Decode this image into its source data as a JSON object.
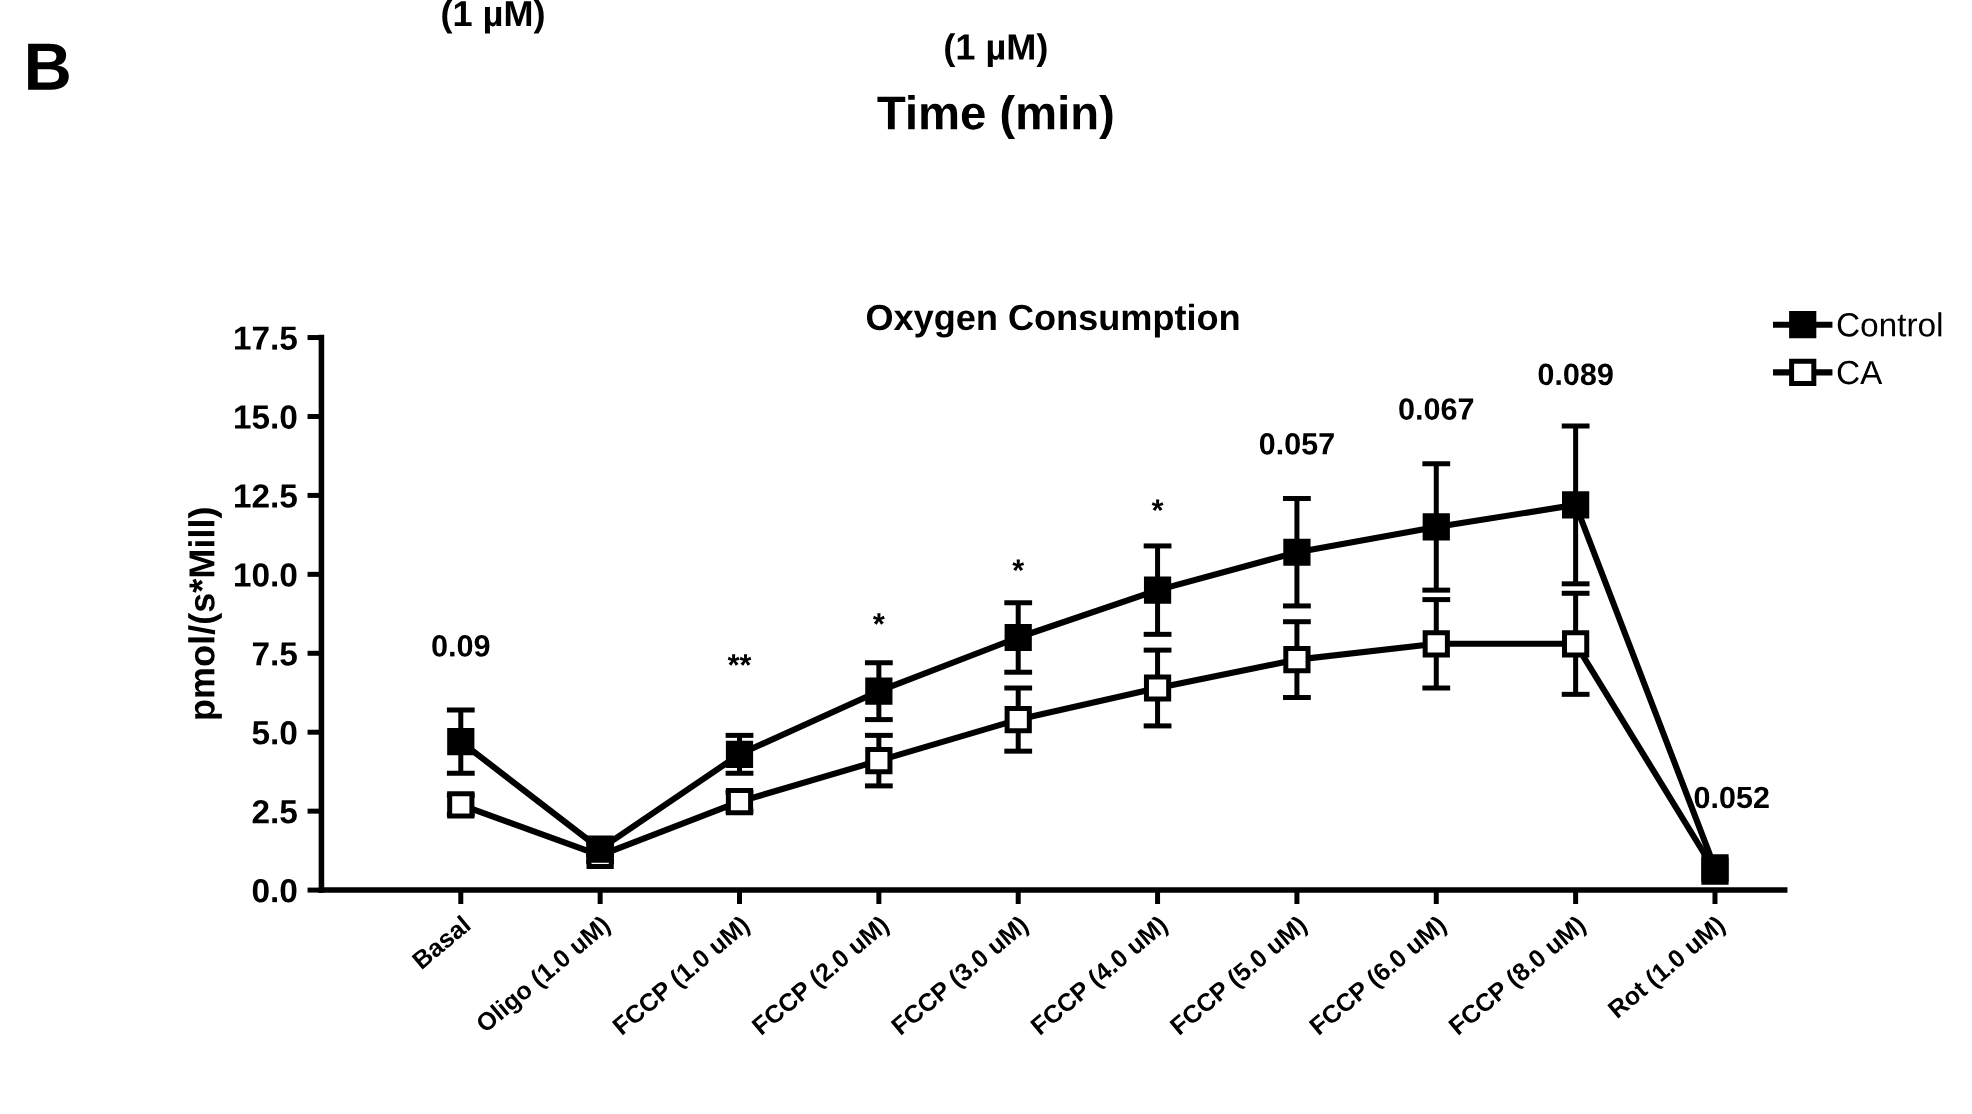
{
  "chart_data": {
    "type": "line",
    "title": "Oxygen Consumption",
    "ylabel": "pmol/(s*Mill)",
    "categories": [
      "Basal",
      "Oligo (1.0 uM)",
      "FCCP (1.0 uM)",
      "FCCP (2.0 uM)",
      "FCCP (3.0 uM)",
      "FCCP (4.0 uM)",
      "FCCP (5.0 uM)",
      "FCCP (6.0 uM)",
      "FCCP (8.0 uM)",
      "Rot (1.0 uM)"
    ],
    "series": [
      {
        "name": "Control",
        "color": "#000000",
        "values": [
          4.7,
          1.3,
          4.3,
          6.3,
          8.0,
          9.5,
          10.7,
          11.5,
          12.2,
          0.7
        ],
        "errors": [
          1.0,
          0.2,
          0.6,
          0.9,
          1.1,
          1.4,
          1.7,
          2.0,
          2.5,
          null
        ]
      },
      {
        "name": "CA",
        "color": "#000000",
        "values": [
          2.7,
          1.1,
          2.8,
          4.1,
          5.4,
          6.4,
          7.3,
          7.8,
          7.8,
          0.6
        ],
        "errors": [
          0.3,
          0.2,
          0.3,
          0.8,
          1.0,
          1.2,
          1.2,
          1.4,
          1.6,
          null
        ]
      }
    ],
    "ylim": [
      0,
      17.5
    ],
    "yticks": [
      {
        "value": 0,
        "label": "0.0"
      },
      2.5,
      {
        "value": 5,
        "label": "5.0"
      },
      7.5,
      {
        "value": 10,
        "label": "10.0"
      },
      12.5,
      {
        "value": 15,
        "label": "15.0"
      },
      17.5
    ],
    "marker": "square",
    "line_style": "solid",
    "grid": false,
    "legend": "top right",
    "annotations": [
      "0.09",
      "**",
      "*",
      "*",
      "*",
      "0.057",
      "0.067",
      "0.089",
      "0.052",
      "B",
      "(1 µM)",
      "(1 µM)",
      "Time (min)"
    ]
  }
}
